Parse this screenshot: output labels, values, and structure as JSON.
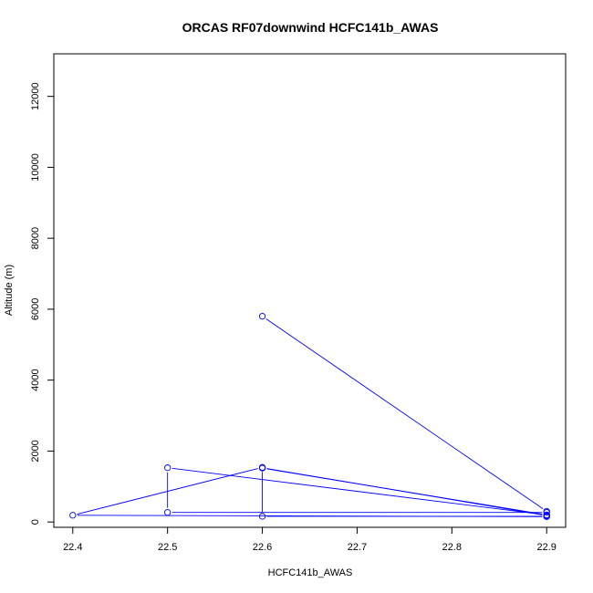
{
  "chart_data": {
    "type": "line",
    "title": "ORCAS RF07downwind HCFC141b_AWAS",
    "xlabel": "HCFC141b_AWAS",
    "ylabel": "Altitude (m)",
    "xlim": [
      22.38,
      22.92
    ],
    "ylim": [
      -150,
      13200
    ],
    "xticks": [
      22.4,
      22.5,
      22.6,
      22.7,
      22.8,
      22.9
    ],
    "xtick_labels": [
      "22.4",
      "22.5",
      "22.6",
      "22.7",
      "22.8",
      "22.9"
    ],
    "yticks": [
      0,
      2000,
      4000,
      6000,
      8000,
      10000,
      12000
    ],
    "ytick_labels": [
      "0",
      "2000",
      "4000",
      "6000",
      "8000",
      "10000",
      "12000"
    ],
    "series": [
      {
        "color": "#0000ff",
        "marker": "open-circle",
        "points": [
          {
            "x": 22.6,
            "y": 5800
          },
          {
            "x": 22.9,
            "y": 300
          },
          {
            "x": 22.9,
            "y": 180
          },
          {
            "x": 22.6,
            "y": 1530
          },
          {
            "x": 22.6,
            "y": 1520
          },
          {
            "x": 22.9,
            "y": 200
          },
          {
            "x": 22.5,
            "y": 1530
          },
          {
            "x": 22.5,
            "y": 270
          },
          {
            "x": 22.9,
            "y": 270
          },
          {
            "x": 22.9,
            "y": 160
          },
          {
            "x": 22.6,
            "y": 160
          },
          {
            "x": 22.6,
            "y": 1540
          },
          {
            "x": 22.4,
            "y": 190
          },
          {
            "x": 22.9,
            "y": 150
          }
        ]
      }
    ]
  }
}
